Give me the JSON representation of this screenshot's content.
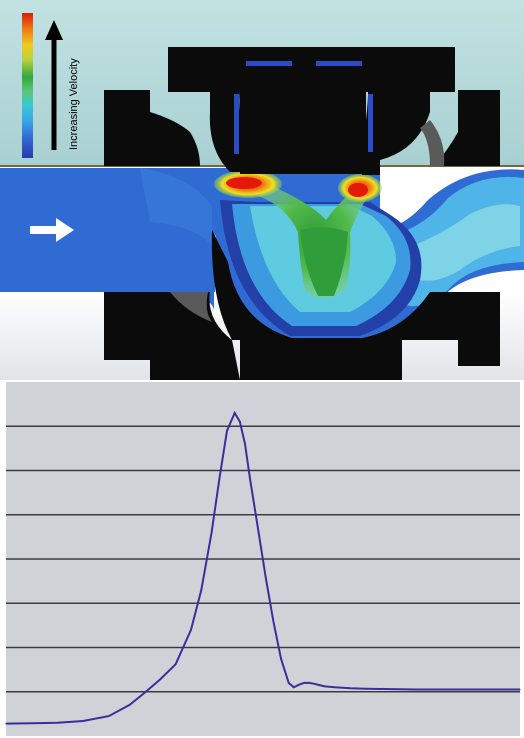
{
  "legend": {
    "label": "Increasing Velocity",
    "gradient_colors": [
      "#2a3bb0",
      "#2f6ad8",
      "#39a8e6",
      "#38c8d6",
      "#58c878",
      "#34a83a",
      "#bcd23a",
      "#f2c81c",
      "#f07a12",
      "#e01a0a"
    ]
  },
  "colors": {
    "background_top": "#b9dcdc",
    "background_bottom": "#eef0f2",
    "valve_body": "#0b0b0b",
    "flow_base": "#2f6bd3",
    "flow_dark": "#233fa8",
    "flow_light": "#4fb4e8",
    "flow_cyan": "#62d0e0",
    "flow_green": "#3faa44",
    "flow_yellow": "#f0e01e",
    "flow_orange": "#f28a14",
    "flow_red": "#e4190a",
    "flow_arrow": "#ffffff",
    "chart_background": "#cfd3d8",
    "chart_gridline": "#3c3c3c",
    "chart_curve": "#3a2f9a"
  },
  "chart_data": {
    "type": "line",
    "title": "",
    "xlabel": "",
    "ylabel": "",
    "xlim": [
      0,
      100
    ],
    "ylim": [
      0,
      8
    ],
    "gridlines_y": [
      1,
      2,
      3,
      4,
      5,
      6,
      7
    ],
    "grid": true,
    "series": [
      {
        "x": [
          0,
          5,
          10,
          15,
          20,
          24,
          27,
          30,
          33,
          36,
          38,
          40,
          41.5,
          43,
          44.5,
          45.5,
          46.5,
          47.5,
          49,
          50.5,
          52,
          53.5,
          55,
          56,
          57,
          58,
          59,
          60,
          61,
          62,
          64,
          67,
          70,
          75,
          80,
          90,
          100
        ],
        "y": [
          0.28,
          0.29,
          0.3,
          0.34,
          0.45,
          0.7,
          0.98,
          1.28,
          1.62,
          2.4,
          3.3,
          4.6,
          5.8,
          6.9,
          7.3,
          7.1,
          6.6,
          5.8,
          4.7,
          3.6,
          2.6,
          1.75,
          1.2,
          1.1,
          1.16,
          1.2,
          1.2,
          1.18,
          1.15,
          1.12,
          1.1,
          1.08,
          1.07,
          1.06,
          1.05,
          1.05,
          1.05
        ]
      }
    ]
  }
}
